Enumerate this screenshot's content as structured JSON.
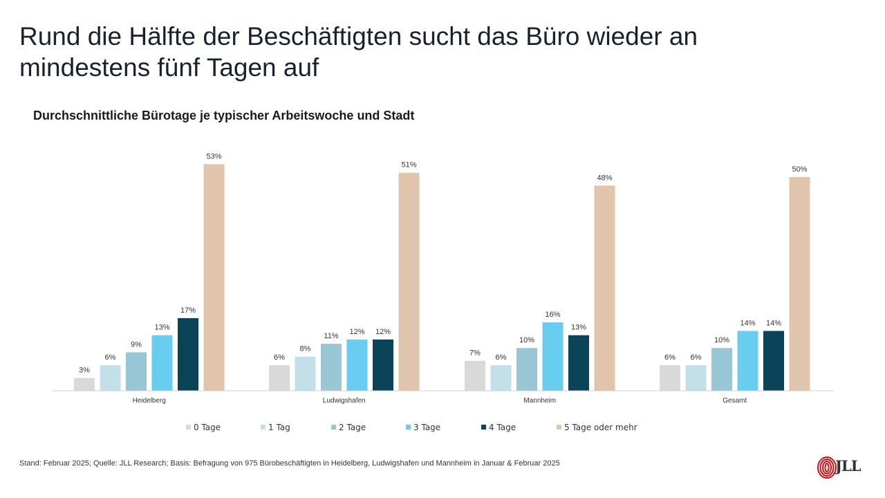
{
  "headline": "Rund die Hälfte der Beschäftigten sucht das Büro wieder an mindestens fünf Tagen auf",
  "footnote": "Stand: Februar 2025; Quelle: JLL Research; Basis: Befragung von 975 Bürobeschäftigten in Heidelberg, Ludwigshafen und Mannheim in Januar & Februar 2025",
  "logo": {
    "text": "JLL",
    "icon": "jll-spiral-logo-icon",
    "color": "#e30613"
  },
  "chart_data": {
    "type": "bar",
    "title": "Durchschnittliche Bürotage je typischer Arbeitswoche und Stadt",
    "categories": [
      "Heidelberg",
      "Ludwigshafen",
      "Mannheim",
      "Gesamt"
    ],
    "series": [
      {
        "name": "0 Tage",
        "color": "#d9d9d9",
        "values": [
          3,
          6,
          7,
          6
        ]
      },
      {
        "name": "1 Tag",
        "color": "#c3e0e8",
        "values": [
          6,
          8,
          6,
          6
        ]
      },
      {
        "name": "2 Tage",
        "color": "#98c6d4",
        "values": [
          9,
          11,
          10,
          10
        ]
      },
      {
        "name": "3 Tage",
        "color": "#69cdf0",
        "values": [
          13,
          12,
          16,
          14
        ]
      },
      {
        "name": "4 Tage",
        "color": "#0b4458",
        "values": [
          17,
          12,
          13,
          14
        ]
      },
      {
        "name": "5 Tage oder mehr",
        "color": "#e0c5ac",
        "values": [
          53,
          51,
          48,
          50
        ]
      }
    ],
    "value_suffix": "%",
    "ylim": [
      0,
      55
    ],
    "grid": false,
    "legend": "bottom"
  }
}
